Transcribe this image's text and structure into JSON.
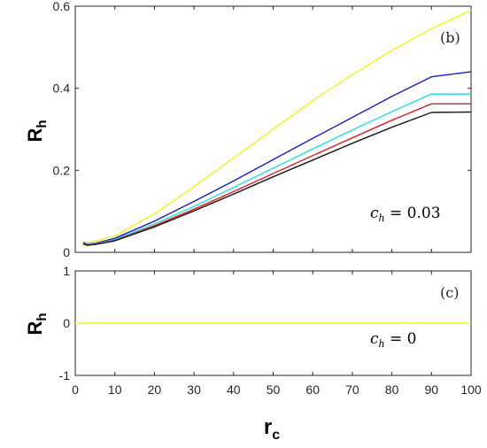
{
  "chart_data": [
    {
      "type": "line",
      "panel_label": "(b)",
      "xlabel": "r",
      "xlabel_sub": "c",
      "ylabel": "R",
      "ylabel_sub": "h",
      "xlim": [
        0,
        100
      ],
      "ylim": [
        0,
        0.6
      ],
      "yticks": [
        "0",
        "0.2",
        "0.4",
        "0.6"
      ],
      "annotation": {
        "var": "c",
        "sub": "h",
        "rest": " = 0.03"
      },
      "grid": false,
      "x": [
        2,
        3,
        5,
        10,
        20,
        30,
        40,
        50,
        60,
        70,
        80,
        90,
        100
      ],
      "series": [
        {
          "color": "#f2f21a",
          "values": [
            0.026,
            0.024,
            0.027,
            0.04,
            0.094,
            0.16,
            0.23,
            0.3,
            0.37,
            0.433,
            0.492,
            0.545,
            0.59
          ]
        },
        {
          "color": "#1a1acc",
          "values": [
            0.024,
            0.02,
            0.022,
            0.034,
            0.076,
            0.124,
            0.174,
            0.226,
            0.278,
            0.329,
            0.38,
            0.428,
            0.44
          ]
        },
        {
          "color": "#22dddd",
          "values": [
            0.023,
            0.019,
            0.021,
            0.031,
            0.069,
            0.112,
            0.158,
            0.205,
            0.252,
            0.298,
            0.343,
            0.386,
            0.386
          ]
        },
        {
          "color": "#e01f1f",
          "values": [
            0.022,
            0.018,
            0.02,
            0.029,
            0.065,
            0.105,
            0.148,
            0.192,
            0.236,
            0.279,
            0.322,
            0.362,
            0.362
          ]
        },
        {
          "color": "#1a1a1a",
          "values": [
            0.021,
            0.017,
            0.019,
            0.028,
            0.062,
            0.101,
            0.142,
            0.184,
            0.225,
            0.266,
            0.305,
            0.341,
            0.342
          ]
        }
      ]
    },
    {
      "type": "line",
      "panel_label": "(c)",
      "xlabel": "r",
      "xlabel_sub": "c",
      "ylabel": "R",
      "ylabel_sub": "h",
      "xlim": [
        0,
        100
      ],
      "ylim": [
        -1,
        1
      ],
      "xticks": [
        "0",
        "10",
        "20",
        "30",
        "40",
        "50",
        "60",
        "70",
        "80",
        "90",
        "100"
      ],
      "yticks": [
        "-1",
        "0",
        "1"
      ],
      "annotation": {
        "var": "c",
        "sub": "h",
        "rest": " = 0"
      },
      "grid": false,
      "x": [
        0,
        100
      ],
      "series": [
        {
          "color": "#f2f21a",
          "values": [
            0,
            0
          ]
        }
      ]
    }
  ]
}
